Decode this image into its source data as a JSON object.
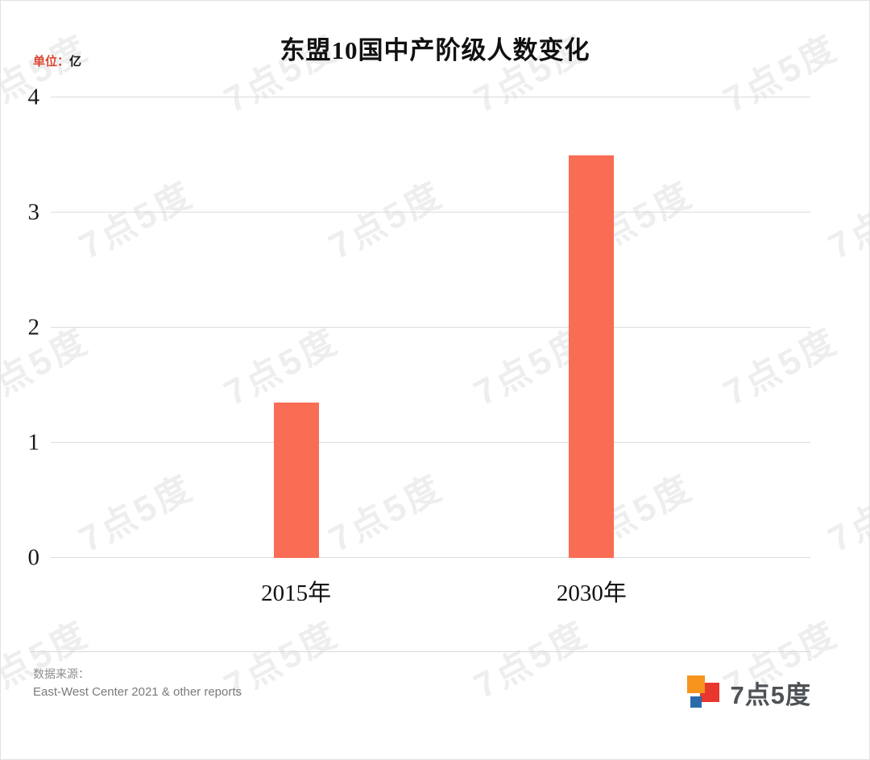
{
  "chart_data": {
    "type": "bar",
    "title": "东盟10国中产阶级人数变化",
    "unit_prefix": "单位：",
    "unit_value": "亿",
    "categories": [
      "2015年",
      "2030年"
    ],
    "values": [
      1.35,
      3.5
    ],
    "ylim": [
      0,
      4
    ],
    "yticks": [
      0,
      1,
      2,
      3,
      4
    ],
    "grid": "horizontal",
    "legend": "none",
    "bar_color": "#F96D55",
    "gridline_color": "#DCDCDC"
  },
  "footer": {
    "source_label": "数据来源：",
    "source_text": "East-West Center 2021 & other reports"
  },
  "branding": {
    "watermark_text": "7点5度",
    "logo_text": "7点5度",
    "logo_colors": {
      "orange": "#F7941E",
      "red": "#E8382D",
      "blue": "#2A6BAA"
    }
  }
}
